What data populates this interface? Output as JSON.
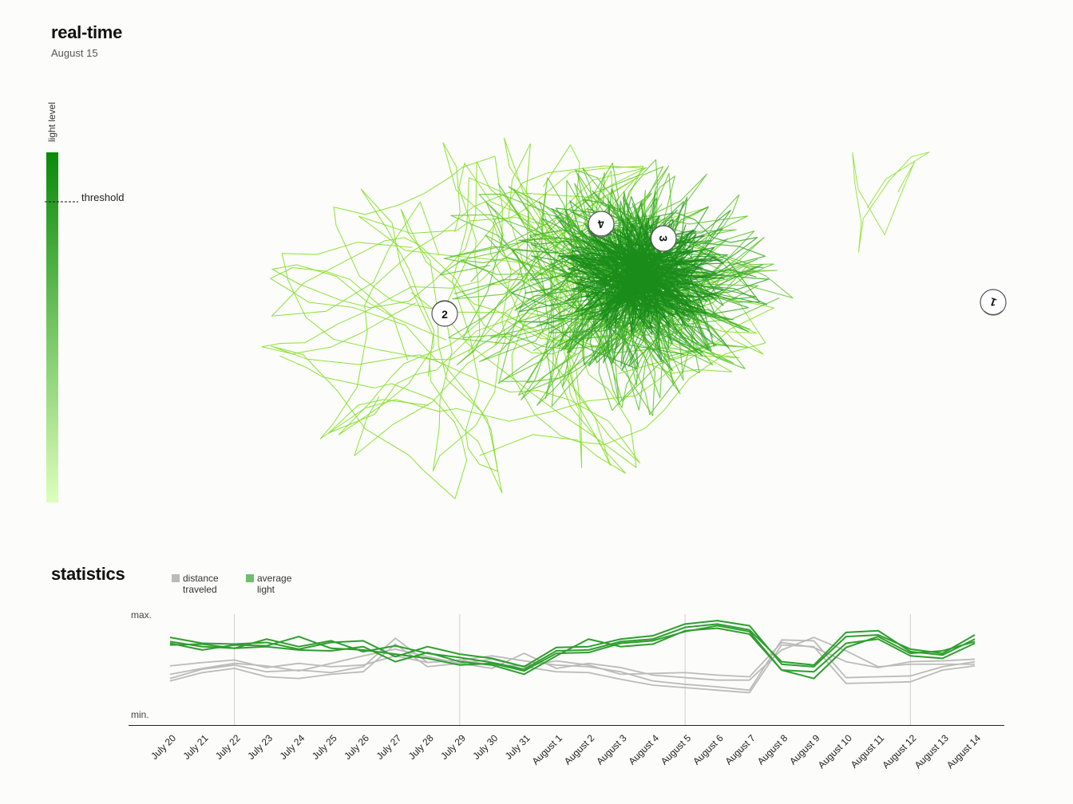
{
  "header": {
    "title": "real-time",
    "date": "August 15"
  },
  "light_bar": {
    "label": "light level",
    "threshold_label": "threshold",
    "colors": {
      "top": "#0a8a0a",
      "bottom": "#ddffbb"
    },
    "threshold_level": 0.86
  },
  "map": {
    "robots": [
      "1",
      "2",
      "3",
      "4"
    ],
    "path_colors": [
      "#80e020",
      "#5cc428",
      "#3aa82a",
      "#1a8c1a"
    ]
  },
  "statistics": {
    "title": "statistics",
    "legend": [
      {
        "label_line1": "distance",
        "label_line2": "traveled",
        "color": "#bbbbbb"
      },
      {
        "label_line1": "average",
        "label_line2": "light",
        "color": "#6cbf6c"
      }
    ],
    "y_max_label": "max.",
    "y_min_label": "min."
  },
  "chart_data": {
    "type": "line",
    "title": "statistics",
    "categories": [
      "July 20",
      "July 21",
      "July 22",
      "July 23",
      "July 24",
      "July 25",
      "July 26",
      "July 27",
      "July 28",
      "July 29",
      "July 30",
      "July 31",
      "August 1",
      "August 2",
      "August 3",
      "August 4",
      "August 5",
      "August 6",
      "August 7",
      "August 8",
      "August 9",
      "August 10",
      "August 11",
      "August 12",
      "August 13",
      "August 14"
    ],
    "ylim": [
      0,
      1
    ],
    "y_tick_labels": [
      "min.",
      "max."
    ],
    "vertical_gridlines_at": [
      "July 22",
      "July 29",
      "August 5",
      "August 12"
    ],
    "legend_position": "top-left",
    "series": [
      {
        "group": "distance traveled",
        "color": "#bbbbbb",
        "values": [
          0.28,
          0.39,
          0.44,
          0.36,
          0.38,
          0.35,
          0.42,
          0.76,
          0.47,
          0.5,
          0.55,
          0.49,
          0.44,
          0.42,
          0.36,
          0.25,
          0.21,
          0.18,
          0.14,
          0.74,
          0.73,
          0.29,
          0.3,
          0.31,
          0.42,
          0.48
        ]
      },
      {
        "group": "distance traveled",
        "color": "#bbbbbb",
        "values": [
          0.33,
          0.4,
          0.46,
          0.43,
          0.37,
          0.46,
          0.55,
          0.63,
          0.54,
          0.46,
          0.4,
          0.58,
          0.4,
          0.46,
          0.41,
          0.32,
          0.29,
          0.26,
          0.26,
          0.62,
          0.77,
          0.61,
          0.42,
          0.45,
          0.45,
          0.45
        ]
      },
      {
        "group": "distance traveled",
        "color": "#bbbbbb",
        "values": [
          0.43,
          0.47,
          0.5,
          0.41,
          0.46,
          0.42,
          0.44,
          0.55,
          0.47,
          0.5,
          0.44,
          0.43,
          0.49,
          0.44,
          0.33,
          0.34,
          0.35,
          0.32,
          0.3,
          0.71,
          0.65,
          0.48,
          0.41,
          0.48,
          0.49,
          0.51
        ]
      },
      {
        "group": "distance traveled",
        "color": "#bbbbbb",
        "values": [
          0.25,
          0.35,
          0.4,
          0.3,
          0.28,
          0.33,
          0.36,
          0.69,
          0.42,
          0.46,
          0.51,
          0.42,
          0.36,
          0.35,
          0.27,
          0.2,
          0.17,
          0.14,
          0.11,
          0.68,
          0.66,
          0.22,
          0.23,
          0.24,
          0.38,
          0.43
        ]
      },
      {
        "group": "average light",
        "color": "#2e9e2e",
        "values": [
          0.72,
          0.66,
          0.64,
          0.75,
          0.66,
          0.73,
          0.6,
          0.67,
          0.58,
          0.53,
          0.47,
          0.39,
          0.61,
          0.62,
          0.72,
          0.75,
          0.89,
          0.93,
          0.86,
          0.48,
          0.44,
          0.83,
          0.85,
          0.6,
          0.56,
          0.75
        ]
      },
      {
        "group": "average light",
        "color": "#2e9e2e",
        "values": [
          0.77,
          0.7,
          0.69,
          0.71,
          0.63,
          0.71,
          0.73,
          0.54,
          0.66,
          0.57,
          0.52,
          0.42,
          0.65,
          0.66,
          0.75,
          0.79,
          0.93,
          0.97,
          0.91,
          0.45,
          0.42,
          0.78,
          0.8,
          0.63,
          0.58,
          0.8
        ]
      },
      {
        "group": "average light",
        "color": "#2e9e2e",
        "values": [
          0.68,
          0.69,
          0.64,
          0.66,
          0.62,
          0.61,
          0.66,
          0.48,
          0.59,
          0.48,
          0.44,
          0.33,
          0.55,
          0.75,
          0.66,
          0.69,
          0.85,
          0.88,
          0.81,
          0.38,
          0.36,
          0.7,
          0.75,
          0.55,
          0.52,
          0.7
        ]
      },
      {
        "group": "average light",
        "color": "#2e9e2e",
        "values": [
          0.7,
          0.62,
          0.68,
          0.67,
          0.78,
          0.64,
          0.62,
          0.57,
          0.52,
          0.44,
          0.46,
          0.37,
          0.58,
          0.59,
          0.7,
          0.73,
          0.84,
          0.91,
          0.84,
          0.38,
          0.28,
          0.65,
          0.78,
          0.58,
          0.61,
          0.72
        ]
      }
    ]
  }
}
